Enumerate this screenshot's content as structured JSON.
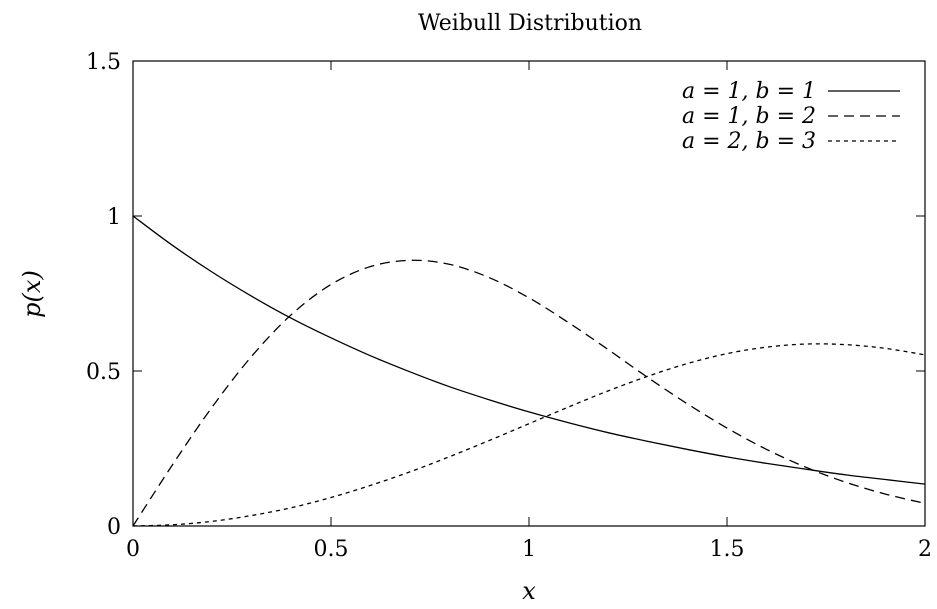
{
  "chart_data": {
    "type": "line",
    "title": "Weibull Distribution",
    "xlabel": "x",
    "ylabel": "p(x)",
    "xlim": [
      0,
      2
    ],
    "ylim": [
      0,
      1.5
    ],
    "x_ticks": [
      0,
      0.5,
      1,
      1.5,
      2
    ],
    "x_tick_labels": [
      "0",
      "0.5",
      "1",
      "1.5",
      "2"
    ],
    "y_ticks": [
      0,
      0.5,
      1,
      1.5
    ],
    "y_tick_labels": [
      "0",
      "0.5",
      "1",
      "1.5"
    ],
    "grid": false,
    "legend_position": "top-right",
    "series": [
      {
        "name": "a = 1, b = 1",
        "line_style": "solid",
        "x": [
          0,
          0.1,
          0.2,
          0.3,
          0.4,
          0.5,
          0.6,
          0.7,
          0.8,
          0.9,
          1.0,
          1.1,
          1.2,
          1.3,
          1.4,
          1.5,
          1.6,
          1.7,
          1.8,
          1.9,
          2.0
        ],
        "y": [
          1.0,
          0.905,
          0.819,
          0.741,
          0.67,
          0.607,
          0.549,
          0.497,
          0.449,
          0.407,
          0.368,
          0.333,
          0.301,
          0.273,
          0.247,
          0.223,
          0.202,
          0.183,
          0.165,
          0.15,
          0.135
        ]
      },
      {
        "name": "a = 1, b = 2",
        "line_style": "dashed",
        "x": [
          0,
          0.1,
          0.2,
          0.3,
          0.4,
          0.5,
          0.6,
          0.7,
          0.8,
          0.9,
          1.0,
          1.1,
          1.2,
          1.3,
          1.4,
          1.5,
          1.6,
          1.7,
          1.8,
          1.9,
          2.0
        ],
        "y": [
          0,
          0.198,
          0.384,
          0.548,
          0.682,
          0.779,
          0.837,
          0.857,
          0.844,
          0.801,
          0.736,
          0.656,
          0.569,
          0.479,
          0.394,
          0.316,
          0.247,
          0.189,
          0.141,
          0.103,
          0.073
        ]
      },
      {
        "name": "a = 2, b = 3",
        "line_style": "dotted",
        "x": [
          0,
          0.1,
          0.2,
          0.3,
          0.4,
          0.5,
          0.6,
          0.7,
          0.8,
          0.9,
          1.0,
          1.1,
          1.2,
          1.3,
          1.4,
          1.5,
          1.6,
          1.7,
          1.8,
          1.9,
          2.0
        ],
        "y": [
          0,
          0.004,
          0.015,
          0.034,
          0.059,
          0.092,
          0.131,
          0.175,
          0.224,
          0.276,
          0.33,
          0.384,
          0.436,
          0.483,
          0.524,
          0.556,
          0.577,
          0.587,
          0.585,
          0.573,
          0.552
        ]
      }
    ]
  }
}
